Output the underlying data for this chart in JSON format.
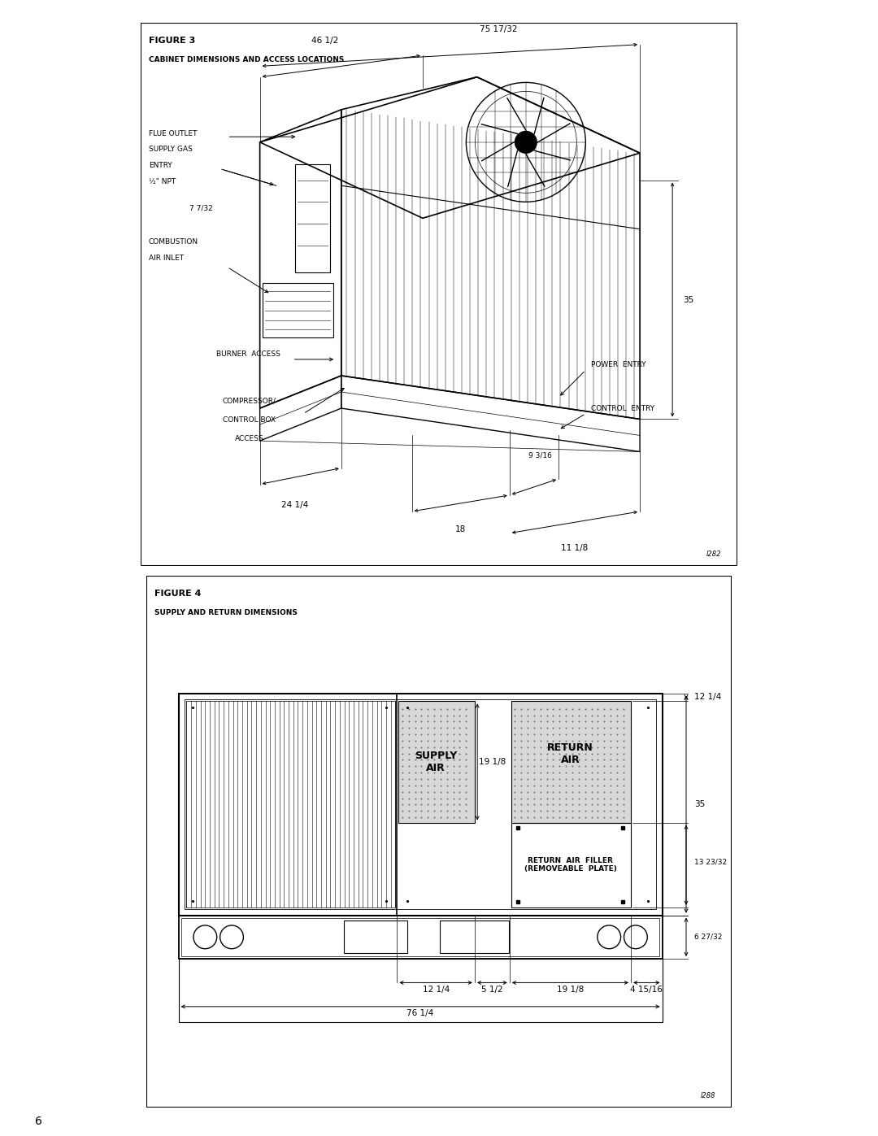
{
  "fig1_title": "FIGURE 3",
  "fig1_subtitle": "CABINET DIMENSIONS AND ACCESS LOCATIONS",
  "fig1_ref": "l282",
  "fig2_title": "FIGURE 4",
  "fig2_subtitle": "SUPPLY AND RETURN DIMENSIONS",
  "fig2_ref": "l288",
  "page_number": "6",
  "bg_color": "#ffffff",
  "dim_46_5": "46 1/2",
  "dim_75_532": "75 17/32",
  "dim_35": "35",
  "dim_24_25": "24 1/4",
  "dim_7_732": "7 7/32",
  "dim_18": "18",
  "dim_9_316": "9 3/16",
  "dim_11_125": "11 1/8",
  "label_flue": "FLUE OUTLET",
  "label_supply_gas_1": "SUPPLY GAS",
  "label_supply_gas_2": "ENTRY",
  "label_supply_gas_3": "½\" NPT",
  "label_supply_gas_dim": "7 7/32",
  "label_combustion_1": "COMBUSTION",
  "label_combustion_2": "AIR INLET",
  "label_burner": "BURNER  ACCESS",
  "label_compressor_1": "COMPRESSOR/",
  "label_compressor_2": "CONTROL BOX",
  "label_compressor_3": "ACCESS",
  "label_power": "POWER  ENTRY",
  "label_control": "CONTROL  ENTRY",
  "dim_12_25": "12 1/4",
  "dim_5_5": "5 1/2",
  "dim_19_125": "19 1/8",
  "dim_4_1516": "4 15/16",
  "dim_76_25": "76 1/4",
  "dim_35_b": "35",
  "dim_12_25_b": "12 1/4",
  "dim_13_2332": "13 23/32",
  "dim_6_2732": "6 27/32",
  "label_supply_air": "SUPPLY\nAIR",
  "label_return_air": "RETURN\nAIR",
  "label_return_filler_1": "RETURN  AIR  FILLER",
  "label_return_filler_2": "(REMOVEABLE  PLATE)",
  "dim_19_18_b": "19 1/8"
}
